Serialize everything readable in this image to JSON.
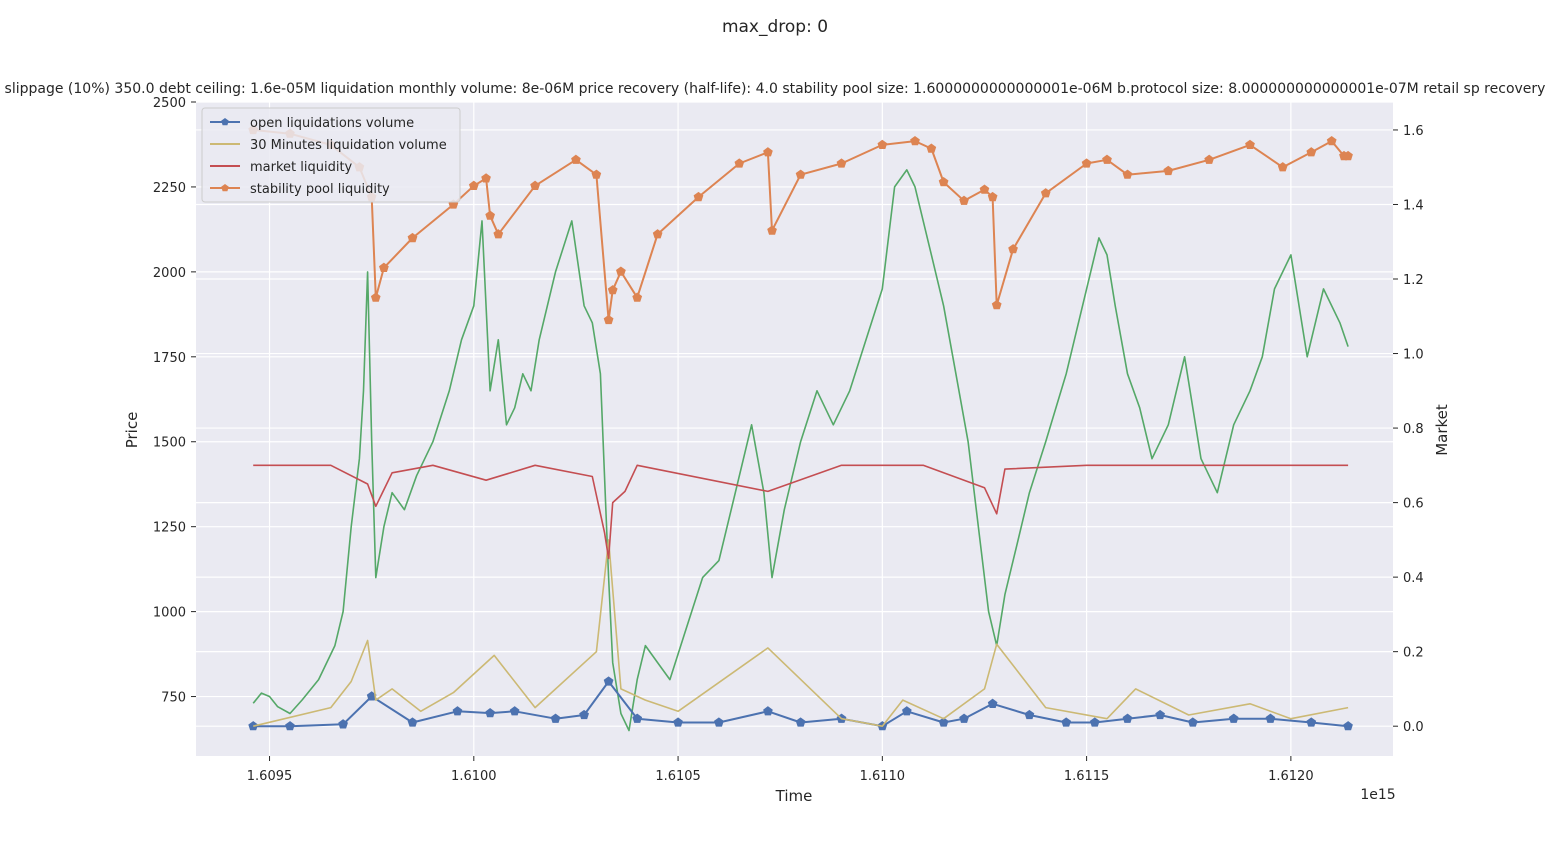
{
  "chart_data": {
    "type": "line",
    "suptitle": "max_drop: 0",
    "title": "slippage (10%) 350.0 debt ceiling: 1.6e-05M liquidation monthly volume: 8e-06M price recovery (half-life): 4.0 stability pool size: 1.6000000000000001e-06M b.protocol size: 8.000000000000001e-07M retail sp recovery",
    "xlabel": "Time",
    "ylabel_left": "Price",
    "ylabel_right": "Market",
    "x_offset_label": "1e15",
    "xlim": [
      1.60932,
      1.61225
    ],
    "ylim_left": [
      575,
      2500
    ],
    "ylim_right": [
      -0.08,
      1.675
    ],
    "x_ticks": [
      1.6095,
      1.61,
      1.6105,
      1.611,
      1.6115,
      1.612
    ],
    "x_tick_labels": [
      "1.6095",
      "1.6100",
      "1.6105",
      "1.6110",
      "1.6115",
      "1.6120"
    ],
    "y_left_ticks": [
      750,
      1000,
      1250,
      1500,
      1750,
      2000,
      2250,
      2500
    ],
    "y_left_tick_labels": [
      "750",
      "1000",
      "1250",
      "1500",
      "1750",
      "2000",
      "2250",
      "2500"
    ],
    "y_right_ticks": [
      0.0,
      0.2,
      0.4,
      0.6,
      0.8,
      1.0,
      1.2,
      1.4,
      1.6
    ],
    "y_right_tick_labels": [
      "0.0",
      "0.2",
      "0.4",
      "0.6",
      "0.8",
      "1.0",
      "1.2",
      "1.4",
      "1.6"
    ],
    "grid": true,
    "legend_position": "upper-left",
    "colors": {
      "price": "#55a868",
      "open_liq": "#4c72b0",
      "liq30": "#ccb974",
      "market": "#c44e52",
      "sp": "#dd8452",
      "axes_bg": "#eaeaf2",
      "grid": "#ffffff"
    },
    "series": [
      {
        "name": "open liquidations volume",
        "axis": "right",
        "style": "line-markers",
        "x": [
          1.60946,
          1.60955,
          1.60968,
          1.60975,
          1.60985,
          1.60996,
          1.61004,
          1.6101,
          1.6102,
          1.61027,
          1.61033,
          1.6104,
          1.6105,
          1.6106,
          1.61072,
          1.6108,
          1.6109,
          1.611,
          1.61106,
          1.61115,
          1.6112,
          1.61127,
          1.61136,
          1.61145,
          1.61152,
          1.6116,
          1.61168,
          1.61176,
          1.61186,
          1.61195,
          1.61205,
          1.61214
        ],
        "y": [
          0.0,
          0.0,
          0.005,
          0.08,
          0.01,
          0.04,
          0.035,
          0.04,
          0.02,
          0.03,
          0.12,
          0.02,
          0.01,
          0.01,
          0.04,
          0.01,
          0.02,
          0.0,
          0.04,
          0.01,
          0.02,
          0.06,
          0.03,
          0.01,
          0.01,
          0.02,
          0.03,
          0.01,
          0.02,
          0.02,
          0.01,
          0.0
        ]
      },
      {
        "name": "30 Minutes liquidation volume",
        "axis": "right",
        "style": "line",
        "x": [
          1.60946,
          1.60965,
          1.6097,
          1.60974,
          1.60976,
          1.6098,
          1.60987,
          1.60995,
          1.61005,
          1.61015,
          1.6103,
          1.61033,
          1.61036,
          1.61042,
          1.6105,
          1.61072,
          1.6109,
          1.611,
          1.61105,
          1.61115,
          1.61125,
          1.61128,
          1.6114,
          1.61155,
          1.61162,
          1.61175,
          1.6119,
          1.612,
          1.61214
        ],
        "y": [
          0.0,
          0.05,
          0.12,
          0.23,
          0.07,
          0.1,
          0.04,
          0.09,
          0.19,
          0.05,
          0.2,
          0.5,
          0.1,
          0.07,
          0.04,
          0.21,
          0.02,
          0.0,
          0.07,
          0.02,
          0.1,
          0.22,
          0.05,
          0.02,
          0.1,
          0.03,
          0.06,
          0.02,
          0.05
        ]
      },
      {
        "name": "market liquidity",
        "axis": "right",
        "style": "line",
        "x": [
          1.60946,
          1.60965,
          1.60974,
          1.60976,
          1.6098,
          1.6099,
          1.61003,
          1.61015,
          1.61029,
          1.61032,
          1.61033,
          1.61034,
          1.61037,
          1.6104,
          1.61072,
          1.6109,
          1.611,
          1.6111,
          1.61125,
          1.61128,
          1.6113,
          1.6115,
          1.6117,
          1.612,
          1.61214
        ],
        "y": [
          0.7,
          0.7,
          0.65,
          0.59,
          0.68,
          0.7,
          0.66,
          0.7,
          0.67,
          0.52,
          0.45,
          0.6,
          0.63,
          0.7,
          0.63,
          0.7,
          0.7,
          0.7,
          0.64,
          0.57,
          0.69,
          0.7,
          0.7,
          0.7,
          0.7
        ]
      },
      {
        "name": "stability pool liquidity",
        "axis": "right",
        "style": "line-markers",
        "x": [
          1.60946,
          1.60955,
          1.60965,
          1.60972,
          1.60975,
          1.60976,
          1.60978,
          1.60985,
          1.60995,
          1.61,
          1.61003,
          1.61004,
          1.61006,
          1.61015,
          1.61025,
          1.6103,
          1.61033,
          1.61034,
          1.61036,
          1.6104,
          1.61045,
          1.61055,
          1.61065,
          1.61072,
          1.61073,
          1.6108,
          1.6109,
          1.611,
          1.61108,
          1.61112,
          1.61115,
          1.6112,
          1.61125,
          1.61127,
          1.61128,
          1.61132,
          1.6114,
          1.6115,
          1.61155,
          1.6116,
          1.6117,
          1.6118,
          1.6119,
          1.61198,
          1.61205,
          1.6121,
          1.61213,
          1.61214
        ],
        "y": [
          1.6,
          1.59,
          1.56,
          1.5,
          1.42,
          1.15,
          1.23,
          1.31,
          1.4,
          1.45,
          1.47,
          1.37,
          1.32,
          1.45,
          1.52,
          1.48,
          1.09,
          1.17,
          1.22,
          1.15,
          1.32,
          1.42,
          1.51,
          1.54,
          1.33,
          1.48,
          1.51,
          1.56,
          1.57,
          1.55,
          1.46,
          1.41,
          1.44,
          1.42,
          1.13,
          1.28,
          1.43,
          1.51,
          1.52,
          1.48,
          1.49,
          1.52,
          1.56,
          1.5,
          1.54,
          1.57,
          1.53,
          1.53
        ]
      },
      {
        "name": "Price",
        "axis": "left",
        "style": "line",
        "legend": false,
        "x": [
          1.60946,
          1.60948,
          1.6095,
          1.60952,
          1.60955,
          1.60958,
          1.60962,
          1.60966,
          1.60968,
          1.6097,
          1.60972,
          1.60973,
          1.60974,
          1.60975,
          1.60976,
          1.60978,
          1.6098,
          1.60983,
          1.60986,
          1.6099,
          1.60994,
          1.60997,
          1.61,
          1.61002,
          1.61004,
          1.61006,
          1.61008,
          1.6101,
          1.61012,
          1.61014,
          1.61016,
          1.6102,
          1.61024,
          1.61027,
          1.61029,
          1.61031,
          1.61033,
          1.61034,
          1.61036,
          1.61038,
          1.6104,
          1.61042,
          1.61045,
          1.61048,
          1.61052,
          1.61056,
          1.6106,
          1.61064,
          1.61068,
          1.61071,
          1.61073,
          1.61076,
          1.6108,
          1.61084,
          1.61088,
          1.61092,
          1.61096,
          1.611,
          1.61103,
          1.61106,
          1.61108,
          1.6111,
          1.61112,
          1.61115,
          1.61118,
          1.61121,
          1.61124,
          1.61126,
          1.61128,
          1.6113,
          1.61133,
          1.61136,
          1.6114,
          1.61145,
          1.6115,
          1.61153,
          1.61155,
          1.61157,
          1.6116,
          1.61163,
          1.61166,
          1.6117,
          1.61174,
          1.61178,
          1.61182,
          1.61186,
          1.6119,
          1.61193,
          1.61196,
          1.612,
          1.61204,
          1.61208,
          1.61212,
          1.61214
        ],
        "y": [
          730,
          760,
          750,
          720,
          700,
          740,
          800,
          900,
          1000,
          1250,
          1450,
          1650,
          2000,
          1500,
          1100,
          1250,
          1350,
          1300,
          1400,
          1500,
          1650,
          1800,
          1900,
          2150,
          1650,
          1800,
          1550,
          1600,
          1700,
          1650,
          1800,
          2000,
          2150,
          1900,
          1850,
          1700,
          1100,
          850,
          700,
          650,
          800,
          900,
          850,
          800,
          950,
          1100,
          1150,
          1350,
          1550,
          1350,
          1100,
          1300,
          1500,
          1650,
          1550,
          1650,
          1800,
          1950,
          2250,
          2300,
          2250,
          2150,
          2050,
          1900,
          1700,
          1500,
          1200,
          1000,
          900,
          1050,
          1200,
          1350,
          1500,
          1700,
          1950,
          2100,
          2050,
          1900,
          1700,
          1600,
          1450,
          1550,
          1750,
          1450,
          1350,
          1550,
          1650,
          1750,
          1950,
          2050,
          1750,
          1950,
          1850,
          1780
        ]
      }
    ]
  }
}
